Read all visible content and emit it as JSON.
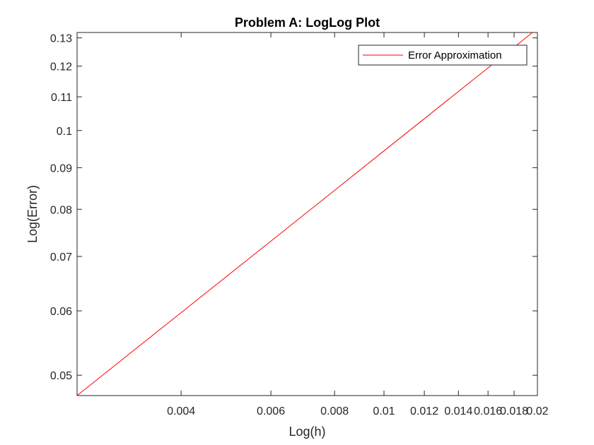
{
  "chart_data": {
    "type": "line",
    "title": "Problem A: LogLog Plot",
    "xlabel": "Log(h)",
    "ylabel": "Log(Error)",
    "xscale": "log",
    "yscale": "log",
    "xlim": [
      0.0025,
      0.02
    ],
    "ylim": [
      0.0472,
      0.132
    ],
    "grid": false,
    "legend_location": "top-right",
    "xticks": [
      0.004,
      0.006,
      0.008,
      0.01,
      0.012,
      0.014,
      0.016,
      0.018,
      0.02
    ],
    "xticklabels": [
      "0.004",
      "0.006",
      "0.008",
      "0.01",
      "0.012",
      "0.014",
      "0.016",
      "0.018",
      "0.02"
    ],
    "yticks": [
      0.05,
      0.06,
      0.07,
      0.08,
      0.09,
      0.1,
      0.11,
      0.12,
      0.13
    ],
    "yticklabels": [
      "0.05",
      "0.06",
      "0.07",
      "0.08",
      "0.09",
      "0.1",
      "0.11",
      "0.12",
      "0.13"
    ],
    "series": [
      {
        "name": "Error Approximation",
        "color": "#ff0000",
        "x": [
          0.0025,
          0.004,
          0.006,
          0.008,
          0.01,
          0.012,
          0.014,
          0.016,
          0.018,
          0.02
        ],
        "y": [
          0.0472,
          0.0597,
          0.0731,
          0.0844,
          0.0944,
          0.1034,
          0.1117,
          0.1194,
          0.1266,
          0.1335
        ]
      }
    ]
  }
}
